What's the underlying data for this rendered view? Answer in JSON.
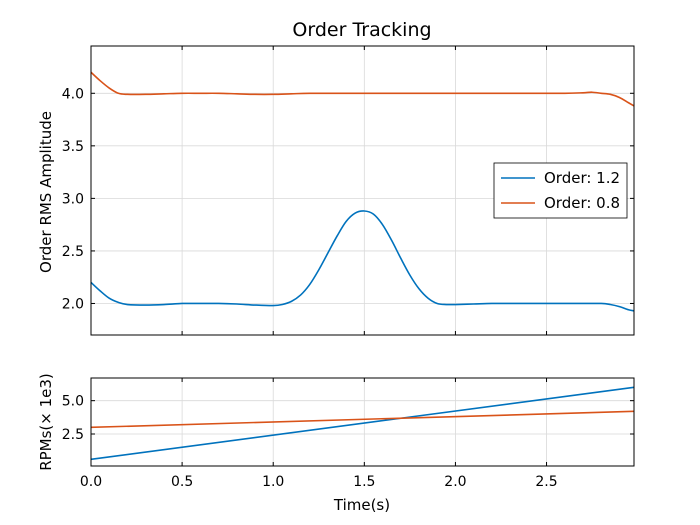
{
  "chart_data": [
    {
      "type": "line",
      "title": "Order Tracking",
      "xlabel": "",
      "ylabel": "Order RMS Amplitude",
      "xlim": [
        0,
        2.98
      ],
      "ylim": [
        1.7,
        4.45
      ],
      "xticks": [
        0.0,
        0.5,
        1.0,
        1.5,
        2.0,
        2.5
      ],
      "yticks": [
        2.0,
        2.5,
        3.0,
        3.5,
        4.0
      ],
      "yticklabels": [
        "2.0",
        "2.5",
        "3.0",
        "3.5",
        "4.0"
      ],
      "grid": true,
      "legend": "center-right",
      "series": [
        {
          "name": "Order: 1.2",
          "color": "#0072bd",
          "x": [
            0.0,
            0.05,
            0.1,
            0.15,
            0.2,
            0.3,
            0.4,
            0.5,
            0.6,
            0.7,
            0.8,
            0.9,
            1.0,
            1.05,
            1.1,
            1.15,
            1.2,
            1.25,
            1.3,
            1.35,
            1.4,
            1.45,
            1.5,
            1.55,
            1.6,
            1.65,
            1.7,
            1.75,
            1.8,
            1.85,
            1.9,
            1.95,
            2.0,
            2.1,
            2.2,
            2.3,
            2.4,
            2.5,
            2.6,
            2.7,
            2.8,
            2.85,
            2.9,
            2.95,
            2.98
          ],
          "y": [
            2.2,
            2.12,
            2.05,
            2.01,
            1.99,
            1.985,
            1.99,
            2.0,
            2.0,
            2.0,
            1.995,
            1.985,
            1.98,
            1.99,
            2.02,
            2.08,
            2.18,
            2.32,
            2.48,
            2.64,
            2.78,
            2.86,
            2.88,
            2.85,
            2.75,
            2.6,
            2.43,
            2.27,
            2.14,
            2.05,
            2.0,
            1.99,
            1.99,
            1.995,
            2.0,
            2.0,
            2.0,
            2.0,
            2.0,
            2.0,
            2.0,
            1.99,
            1.97,
            1.94,
            1.93
          ]
        },
        {
          "name": "Order: 0.8",
          "color": "#d95319",
          "x": [
            0.0,
            0.05,
            0.1,
            0.15,
            0.2,
            0.3,
            0.4,
            0.5,
            0.6,
            0.7,
            0.8,
            0.9,
            1.0,
            1.1,
            1.2,
            1.4,
            1.6,
            1.8,
            2.0,
            2.2,
            2.4,
            2.6,
            2.7,
            2.75,
            2.8,
            2.85,
            2.9,
            2.95,
            2.98
          ],
          "y": [
            4.2,
            4.12,
            4.05,
            4.0,
            3.99,
            3.99,
            3.995,
            4.0,
            4.0,
            4.0,
            3.995,
            3.99,
            3.99,
            3.995,
            4.0,
            4.0,
            4.0,
            4.0,
            4.0,
            4.0,
            4.0,
            4.0,
            4.005,
            4.01,
            4.0,
            3.99,
            3.96,
            3.91,
            3.88
          ]
        }
      ]
    },
    {
      "type": "line",
      "title": "",
      "xlabel": "Time(s)",
      "ylabel": "RPMs(× 1e3)",
      "xlim": [
        0,
        2.98
      ],
      "ylim": [
        0.1,
        6.7
      ],
      "xticks": [
        0.0,
        0.5,
        1.0,
        1.5,
        2.0,
        2.5
      ],
      "xticklabels": [
        "0.0",
        "0.5",
        "1.0",
        "1.5",
        "2.0",
        "2.5"
      ],
      "yticks": [
        2.5,
        5.0
      ],
      "yticklabels": [
        "2.5",
        "5.0"
      ],
      "grid": true,
      "series": [
        {
          "name": "",
          "color": "#0072bd",
          "x": [
            0.0,
            2.98
          ],
          "y": [
            0.6,
            6.0
          ]
        },
        {
          "name": "",
          "color": "#d95319",
          "x": [
            0.0,
            2.98
          ],
          "y": [
            3.0,
            4.2
          ]
        }
      ]
    }
  ]
}
